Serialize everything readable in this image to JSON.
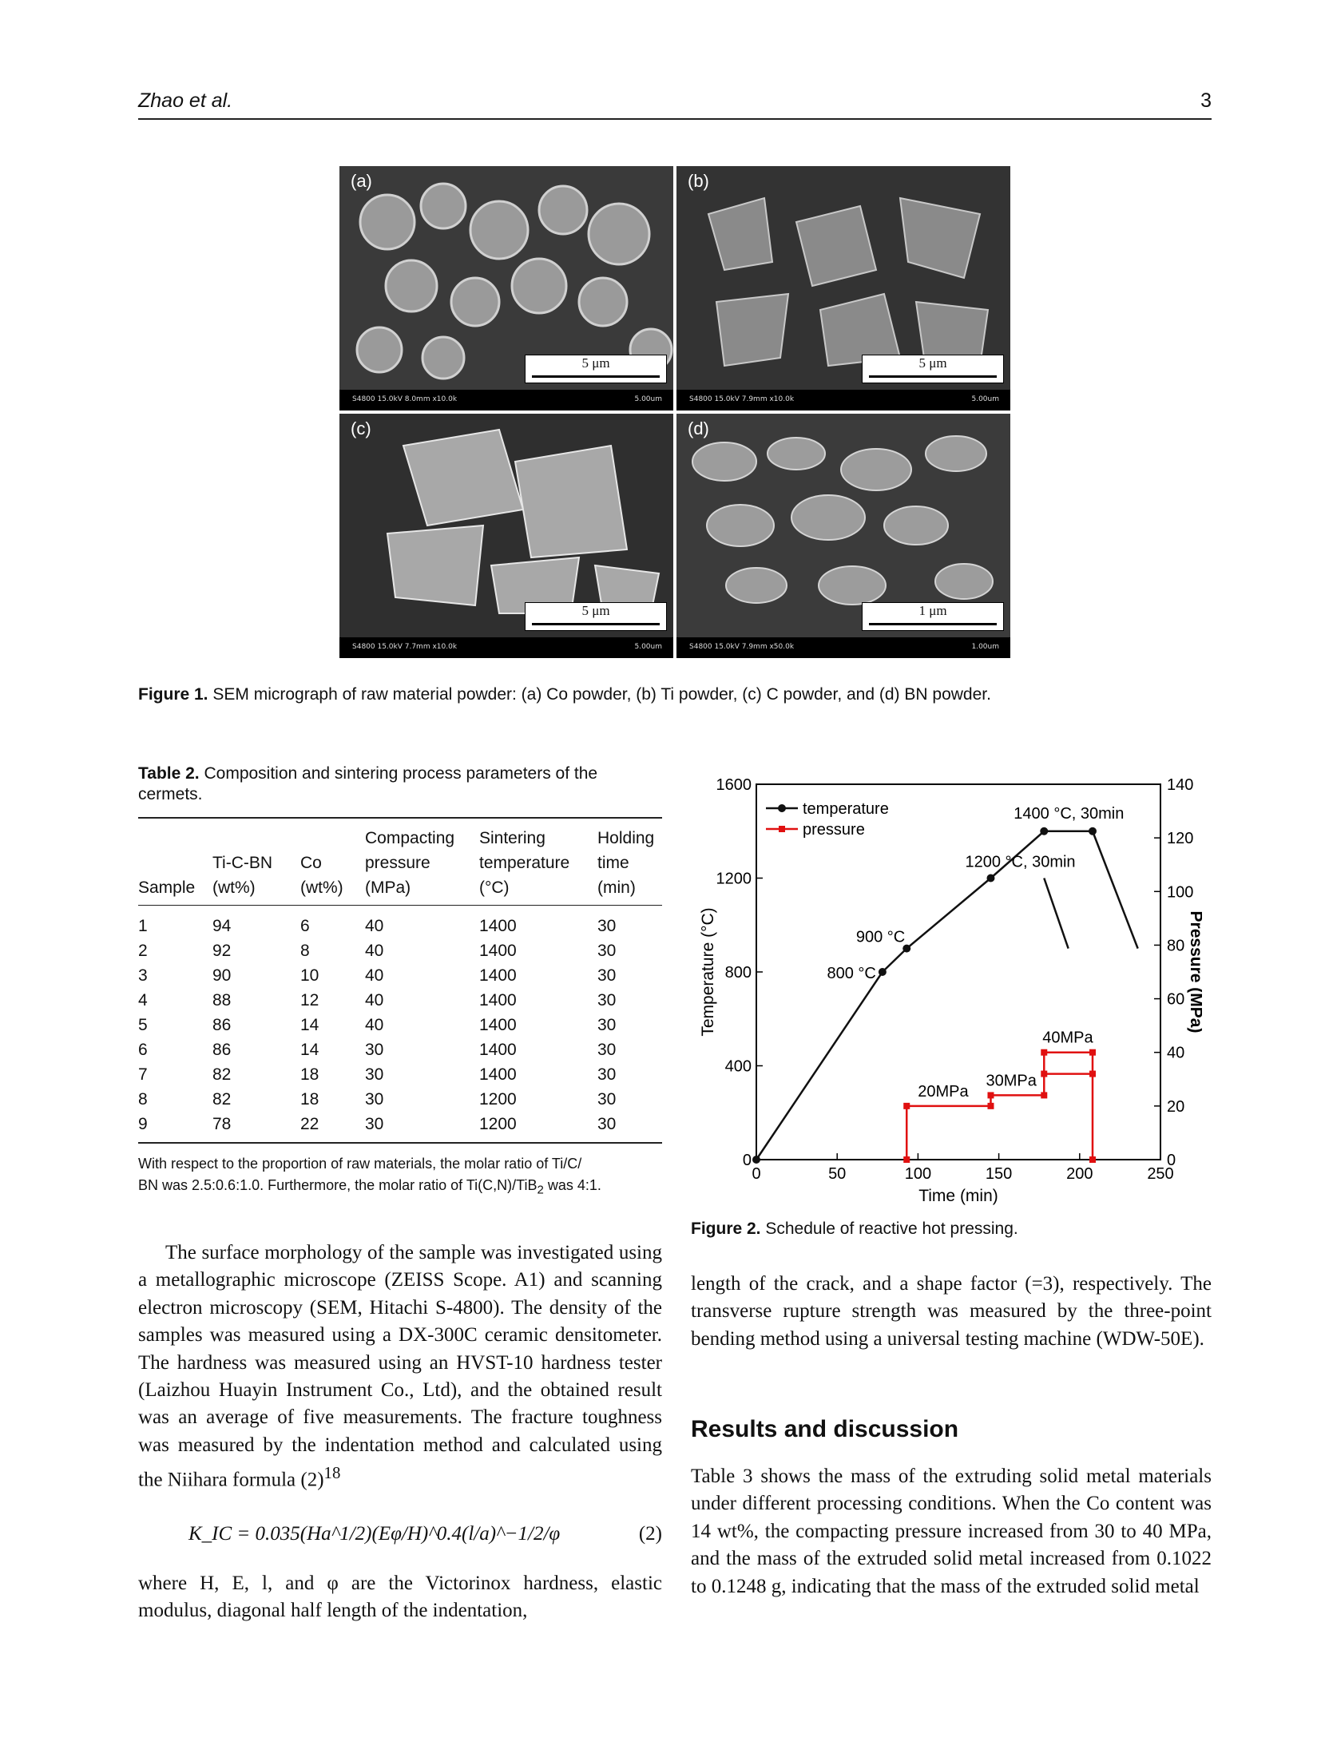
{
  "header": {
    "authors": "Zhao et al.",
    "page": "3"
  },
  "figure1": {
    "panels": [
      {
        "label": "(a)",
        "scale": "5 μm",
        "info": "S4800 15.0kV 8.0mm x10.0k",
        "scale_readout": "5.00um"
      },
      {
        "label": "(b)",
        "scale": "5 μm",
        "info": "S4800 15.0kV 7.9mm x10.0k",
        "scale_readout": "5.00um"
      },
      {
        "label": "(c)",
        "scale": "5 μm",
        "info": "S4800 15.0kV 7.7mm x10.0k",
        "scale_readout": "5.00um"
      },
      {
        "label": "(d)",
        "scale": "1 μm",
        "info": "S4800 15.0kV 7.9mm x50.0k",
        "scale_readout": "1.00um"
      }
    ],
    "caption_label": "Figure 1.",
    "caption_text": "SEM micrograph of raw material powder: (a) Co powder, (b) Ti powder, (c) C powder, and (d) BN powder."
  },
  "table2": {
    "caption_label": "Table 2.",
    "caption_text": "Composition and sintering process parameters of the cermets.",
    "headers": [
      [
        "Sample"
      ],
      [
        "Ti-C-BN",
        "(wt%)"
      ],
      [
        "Co",
        "(wt%)"
      ],
      [
        "Compacting",
        "pressure",
        "(MPa)"
      ],
      [
        "Sintering",
        "temperature",
        "(°C)"
      ],
      [
        "Holding",
        "time",
        "(min)"
      ]
    ],
    "rows": [
      [
        "1",
        "94",
        "6",
        "40",
        "1400",
        "30"
      ],
      [
        "2",
        "92",
        "8",
        "40",
        "1400",
        "30"
      ],
      [
        "3",
        "90",
        "10",
        "40",
        "1400",
        "30"
      ],
      [
        "4",
        "88",
        "12",
        "40",
        "1400",
        "30"
      ],
      [
        "5",
        "86",
        "14",
        "40",
        "1400",
        "30"
      ],
      [
        "6",
        "86",
        "14",
        "30",
        "1400",
        "30"
      ],
      [
        "7",
        "82",
        "18",
        "30",
        "1400",
        "30"
      ],
      [
        "8",
        "82",
        "18",
        "30",
        "1200",
        "30"
      ],
      [
        "9",
        "78",
        "22",
        "30",
        "1200",
        "30"
      ]
    ],
    "note_line1": "With respect to the proportion of raw materials, the molar ratio of Ti/C/",
    "note_line2_pre": "BN was 2.5:0.6:1.0. Furthermore, the molar ratio of Ti(C,N)/TiB",
    "note_sub": "2",
    "note_line2_post": " was 4:1."
  },
  "body_left": {
    "para": "The surface morphology of the sample was investigated using a metallographic microscope (ZEISS Scope. A1) and scanning electron microscopy (SEM, Hitachi S-4800). The density of the samples was measured using a DX-300C ceramic densitometer. The hardness was measured using an HVST-10 hardness tester (Laizhou Huayin Instrument Co., Ltd), and the obtained result was an average of five measurements. The fracture toughness was measured by the indentation method and calculated using the Niihara formula (2)",
    "ref": "18",
    "equation": "K_IC = 0.035(Ha^1/2)(Eφ/H)^0.4(l/a)^−1/2/φ",
    "equation_number": "(2)",
    "after_eq": "where H, E, l, and φ are the Victorinox hardness, elastic modulus, diagonal half length of the indentation,"
  },
  "body_right": {
    "para1": "length of the crack, and a shape factor (=3), respectively. The transverse rupture strength was measured by the three-point bending method using a universal testing machine (WDW-50E).",
    "section_title": "Results and discussion",
    "para2": "Table 3 shows the mass of the extruding solid metal materials under different processing conditions. When the Co content was 14 wt%, the compacting pressure increased from 30 to 40 MPa, and the mass of the extruded solid metal increased from 0.1022 to 0.1248 g, indicating that the mass of the extruded solid metal"
  },
  "figure2": {
    "caption_label": "Figure 2.",
    "caption_text": "Schedule of reactive hot pressing."
  },
  "chart_data": {
    "type": "line",
    "title": "",
    "xlabel": "Time (min)",
    "ylabel": "Temperature (°C)",
    "y2label": "Pressure (MPa)",
    "xlim": [
      0,
      250
    ],
    "ylim": [
      0,
      1600
    ],
    "y2lim": [
      0,
      140
    ],
    "x_ticks": [
      0,
      50,
      100,
      150,
      200,
      250
    ],
    "y_ticks": [
      0,
      400,
      800,
      1200,
      1600
    ],
    "y2_ticks": [
      0,
      20,
      40,
      60,
      80,
      100,
      120,
      140
    ],
    "legend": [
      "temperature",
      "pressure"
    ],
    "colors": {
      "temperature": "#111111",
      "pressure": "#e01010"
    },
    "series": [
      {
        "name": "temperature",
        "axis": "left",
        "x": [
          0,
          78,
          93,
          145,
          178,
          208
        ],
        "y": [
          0,
          800,
          900,
          1200,
          1400,
          1400
        ]
      },
      {
        "name": "pressure",
        "axis": "right",
        "x": [
          93,
          93,
          145,
          145,
          178,
          178,
          208,
          208
        ],
        "y": [
          0,
          20,
          20,
          24,
          24,
          32,
          32,
          0
        ]
      }
    ],
    "cooldown_segments": [
      {
        "x": [
          178,
          193
        ],
        "y": [
          1200,
          900
        ]
      },
      {
        "x": [
          208,
          236
        ],
        "y": [
          1400,
          900
        ]
      }
    ],
    "pressure_step_40MPa": {
      "x": [
        178,
        208
      ],
      "y": [
        40,
        40
      ]
    },
    "annotations": [
      "800 °C",
      "900 °C",
      "1200 °C, 30min",
      "1400 °C, 30min",
      "20MPa",
      "30MPa",
      "40MPa"
    ]
  }
}
